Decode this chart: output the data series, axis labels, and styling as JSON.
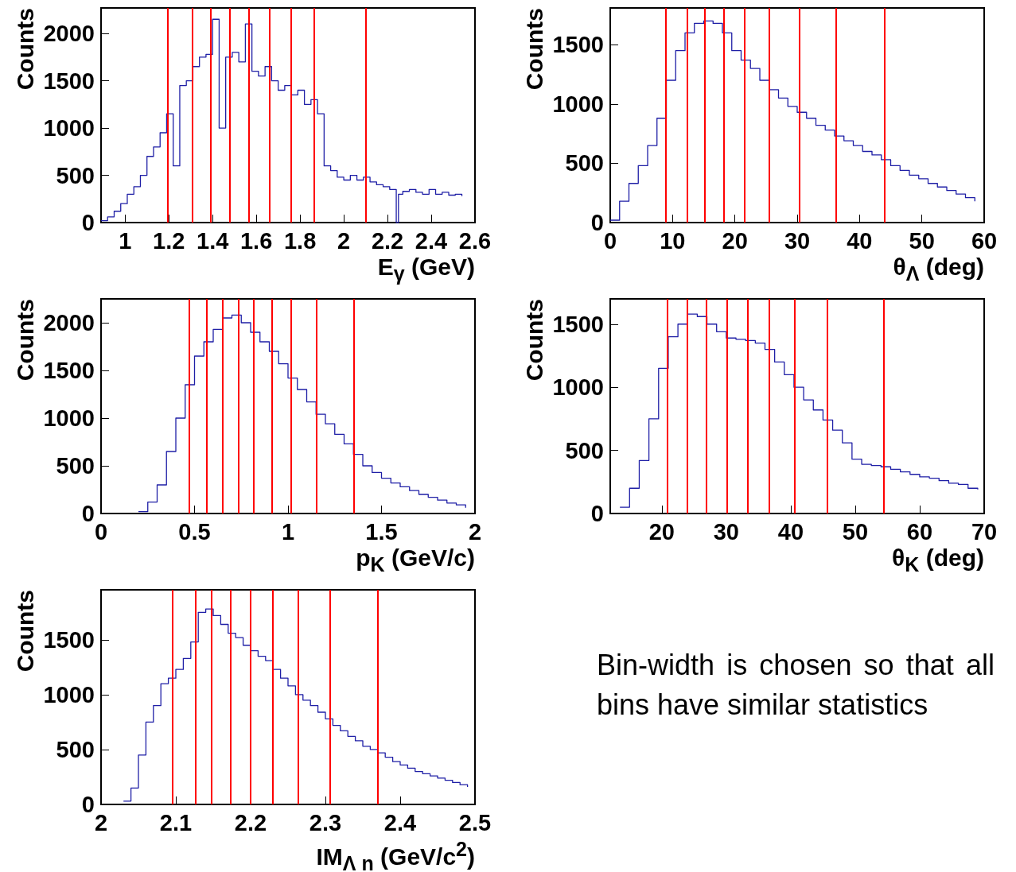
{
  "chart_data": [
    {
      "type": "step",
      "xlabel": "E$_{γ}$ (GeV)",
      "ylabel": "Counts",
      "color": "#1f1fa6",
      "marker": "none",
      "xlim": [
        0.89,
        2.6
      ],
      "ylim": [
        0,
        2270
      ],
      "xticks": [
        1,
        1.2,
        1.4,
        1.6,
        1.8,
        2,
        2.2,
        2.4,
        2.6
      ],
      "yticks": [
        0,
        500,
        1000,
        1500,
        2000
      ],
      "x": [
        0.89,
        0.92,
        0.95,
        0.98,
        1.01,
        1.04,
        1.07,
        1.1,
        1.13,
        1.16,
        1.19,
        1.22,
        1.25,
        1.28,
        1.31,
        1.34,
        1.37,
        1.4,
        1.43,
        1.46,
        1.49,
        1.52,
        1.55,
        1.58,
        1.61,
        1.64,
        1.67,
        1.7,
        1.73,
        1.76,
        1.79,
        1.82,
        1.85,
        1.88,
        1.91,
        1.94,
        1.97,
        2.0,
        2.03,
        2.06,
        2.09,
        2.12,
        2.15,
        2.18,
        2.21,
        2.24,
        2.25,
        2.27,
        2.3,
        2.33,
        2.36,
        2.39,
        2.42,
        2.45,
        2.48,
        2.51,
        2.54
      ],
      "values": [
        20,
        60,
        120,
        200,
        300,
        380,
        500,
        700,
        800,
        950,
        1150,
        600,
        1450,
        1500,
        1650,
        1750,
        1780,
        2150,
        1000,
        1750,
        1800,
        1700,
        2100,
        1600,
        1550,
        1650,
        1500,
        1400,
        1450,
        1350,
        1400,
        1250,
        1300,
        1150,
        600,
        550,
        480,
        450,
        500,
        450,
        480,
        430,
        400,
        380,
        350,
        0,
        300,
        330,
        350,
        320,
        300,
        350,
        300,
        320,
        290,
        300,
        280
      ],
      "ref_lines": [
        {
          "axis": "x",
          "value": 1.195,
          "color": "#ff0000"
        },
        {
          "axis": "x",
          "value": 1.306,
          "color": "#ff0000"
        },
        {
          "axis": "x",
          "value": 1.392,
          "color": "#ff0000"
        },
        {
          "axis": "x",
          "value": 1.479,
          "color": "#ff0000"
        },
        {
          "axis": "x",
          "value": 1.567,
          "color": "#ff0000"
        },
        {
          "axis": "x",
          "value": 1.659,
          "color": "#ff0000"
        },
        {
          "axis": "x",
          "value": 1.759,
          "color": "#ff0000"
        },
        {
          "axis": "x",
          "value": 1.865,
          "color": "#ff0000"
        },
        {
          "axis": "x",
          "value": 2.102,
          "color": "#ff0000"
        }
      ]
    },
    {
      "type": "step",
      "xlabel": "θ$_{Λ}$ (deg)",
      "ylabel": "Counts",
      "color": "#1f1fa6",
      "marker": "none",
      "xlim": [
        0,
        60
      ],
      "ylim": [
        0,
        1810
      ],
      "xticks": [
        0,
        10,
        20,
        30,
        40,
        50,
        60
      ],
      "yticks": [
        0,
        500,
        1000,
        1500
      ],
      "x": [
        0,
        1.5,
        3,
        4.5,
        6,
        7.5,
        9,
        10.5,
        12,
        13.5,
        15,
        16.5,
        18,
        19.5,
        21,
        22.5,
        24,
        25.5,
        27,
        28.5,
        30,
        31.5,
        33,
        34.5,
        36,
        37.5,
        39,
        40.5,
        42,
        43.5,
        45,
        46.5,
        48,
        49.5,
        51,
        52.5,
        54,
        55.5,
        57,
        58.5
      ],
      "values": [
        20,
        180,
        330,
        480,
        650,
        880,
        1200,
        1450,
        1600,
        1680,
        1700,
        1680,
        1600,
        1450,
        1370,
        1300,
        1200,
        1120,
        1050,
        980,
        930,
        880,
        820,
        780,
        730,
        690,
        650,
        600,
        570,
        530,
        480,
        440,
        400,
        370,
        330,
        300,
        270,
        240,
        210,
        180
      ],
      "ref_lines": [
        {
          "axis": "x",
          "value": 8.96,
          "color": "#ff0000"
        },
        {
          "axis": "x",
          "value": 12.3,
          "color": "#ff0000"
        },
        {
          "axis": "x",
          "value": 15.2,
          "color": "#ff0000"
        },
        {
          "axis": "x",
          "value": 18.2,
          "color": "#ff0000"
        },
        {
          "axis": "x",
          "value": 21.5,
          "color": "#ff0000"
        },
        {
          "axis": "x",
          "value": 25.5,
          "color": "#ff0000"
        },
        {
          "axis": "x",
          "value": 30.3,
          "color": "#ff0000"
        },
        {
          "axis": "x",
          "value": 36.2,
          "color": "#ff0000"
        },
        {
          "axis": "x",
          "value": 44.0,
          "color": "#ff0000"
        }
      ]
    },
    {
      "type": "step",
      "xlabel": "p$_{K}$ (GeV/c)",
      "ylabel": "Counts",
      "color": "#1f1fa6",
      "marker": "none",
      "xlim": [
        0,
        2
      ],
      "ylim": [
        0,
        2250
      ],
      "xticks": [
        0,
        0.5,
        1,
        1.5,
        2
      ],
      "yticks": [
        0,
        500,
        1000,
        1500,
        2000
      ],
      "x": [
        0.2,
        0.25,
        0.3,
        0.35,
        0.4,
        0.45,
        0.5,
        0.55,
        0.6,
        0.65,
        0.7,
        0.75,
        0.8,
        0.85,
        0.9,
        0.95,
        1.0,
        1.05,
        1.1,
        1.15,
        1.2,
        1.25,
        1.3,
        1.35,
        1.4,
        1.45,
        1.5,
        1.55,
        1.6,
        1.65,
        1.7,
        1.75,
        1.8,
        1.85,
        1.9,
        1.95
      ],
      "values": [
        20,
        120,
        300,
        650,
        1000,
        1350,
        1650,
        1800,
        1930,
        2050,
        2080,
        2000,
        1900,
        1800,
        1700,
        1570,
        1420,
        1300,
        1170,
        1040,
        940,
        830,
        730,
        620,
        500,
        430,
        370,
        320,
        280,
        240,
        200,
        170,
        140,
        110,
        90,
        60
      ],
      "ref_lines": [
        {
          "axis": "x",
          "value": 0.472,
          "color": "#ff0000"
        },
        {
          "axis": "x",
          "value": 0.567,
          "color": "#ff0000"
        },
        {
          "axis": "x",
          "value": 0.65,
          "color": "#ff0000"
        },
        {
          "axis": "x",
          "value": 0.735,
          "color": "#ff0000"
        },
        {
          "axis": "x",
          "value": 0.817,
          "color": "#ff0000"
        },
        {
          "axis": "x",
          "value": 0.912,
          "color": "#ff0000"
        },
        {
          "axis": "x",
          "value": 1.017,
          "color": "#ff0000"
        },
        {
          "axis": "x",
          "value": 1.151,
          "color": "#ff0000"
        },
        {
          "axis": "x",
          "value": 1.351,
          "color": "#ff0000"
        }
      ]
    },
    {
      "type": "step",
      "xlabel": "θ$_{K}$ (deg)",
      "ylabel": "Counts",
      "color": "#1f1fa6",
      "marker": "none",
      "xlim": [
        12,
        70
      ],
      "ylim": [
        0,
        1700
      ],
      "xticks": [
        20,
        30,
        40,
        50,
        60,
        70
      ],
      "yticks": [
        0,
        500,
        1000,
        1500
      ],
      "x": [
        13.5,
        15,
        16.5,
        18,
        19.5,
        21,
        22.5,
        24,
        25.5,
        27,
        28.5,
        30,
        31.5,
        33,
        34.5,
        36,
        37.5,
        39,
        40.5,
        42,
        43.5,
        45,
        46.5,
        48,
        49.5,
        51,
        52.5,
        54,
        55.5,
        57,
        58.5,
        60,
        61.5,
        63,
        64.5,
        66,
        67.5,
        69
      ],
      "values": [
        50,
        200,
        420,
        750,
        1150,
        1400,
        1500,
        1580,
        1560,
        1500,
        1440,
        1390,
        1380,
        1370,
        1350,
        1300,
        1200,
        1100,
        1000,
        900,
        820,
        740,
        660,
        560,
        430,
        390,
        380,
        370,
        350,
        330,
        310,
        290,
        280,
        260,
        240,
        230,
        200,
        190
      ],
      "ref_lines": [
        {
          "axis": "x",
          "value": 20.9,
          "color": "#ff0000"
        },
        {
          "axis": "x",
          "value": 24.0,
          "color": "#ff0000"
        },
        {
          "axis": "x",
          "value": 26.9,
          "color": "#ff0000"
        },
        {
          "axis": "x",
          "value": 30.1,
          "color": "#ff0000"
        },
        {
          "axis": "x",
          "value": 33.3,
          "color": "#ff0000"
        },
        {
          "axis": "x",
          "value": 36.7,
          "color": "#ff0000"
        },
        {
          "axis": "x",
          "value": 40.6,
          "color": "#ff0000"
        },
        {
          "axis": "x",
          "value": 45.6,
          "color": "#ff0000"
        },
        {
          "axis": "x",
          "value": 54.4,
          "color": "#ff0000"
        }
      ]
    },
    {
      "type": "step",
      "xlabel": "IM$_{Λ n}$ (GeV/c$^{2}$)",
      "ylabel": "Counts",
      "color": "#1f1fa6",
      "marker": "none",
      "xlim": [
        2,
        2.5
      ],
      "ylim": [
        0,
        1955
      ],
      "xticks": [
        2,
        2.1,
        2.2,
        2.3,
        2.4,
        2.5
      ],
      "yticks": [
        0,
        500,
        1000,
        1500
      ],
      "x": [
        2.03,
        2.04,
        2.05,
        2.06,
        2.07,
        2.08,
        2.09,
        2.1,
        2.11,
        2.12,
        2.13,
        2.14,
        2.15,
        2.16,
        2.17,
        2.18,
        2.19,
        2.2,
        2.21,
        2.22,
        2.23,
        2.24,
        2.25,
        2.26,
        2.27,
        2.28,
        2.29,
        2.3,
        2.31,
        2.32,
        2.33,
        2.34,
        2.35,
        2.36,
        2.37,
        2.38,
        2.39,
        2.4,
        2.41,
        2.42,
        2.43,
        2.44,
        2.45,
        2.46,
        2.47,
        2.48,
        2.49
      ],
      "values": [
        30,
        150,
        450,
        750,
        900,
        1100,
        1150,
        1230,
        1330,
        1480,
        1750,
        1780,
        1720,
        1640,
        1560,
        1520,
        1450,
        1400,
        1350,
        1310,
        1230,
        1150,
        1080,
        1000,
        950,
        900,
        840,
        780,
        720,
        670,
        620,
        580,
        530,
        500,
        470,
        430,
        390,
        360,
        330,
        300,
        280,
        260,
        240,
        220,
        200,
        180,
        160
      ],
      "ref_lines": [
        {
          "axis": "x",
          "value": 2.0955,
          "color": "#ff0000"
        },
        {
          "axis": "x",
          "value": 2.1265,
          "color": "#ff0000"
        },
        {
          "axis": "x",
          "value": 2.148,
          "color": "#ff0000"
        },
        {
          "axis": "x",
          "value": 2.173,
          "color": "#ff0000"
        },
        {
          "axis": "x",
          "value": 2.1995,
          "color": "#ff0000"
        },
        {
          "axis": "x",
          "value": 2.229,
          "color": "#ff0000"
        },
        {
          "axis": "x",
          "value": 2.2636,
          "color": "#ff0000"
        },
        {
          "axis": "x",
          "value": 2.3065,
          "color": "#ff0000"
        },
        {
          "axis": "x",
          "value": 2.3697,
          "color": "#ff0000"
        }
      ]
    },
    {
      "type": "other",
      "annotations": [
        "Bin-width is chosen so that all bins have similar statistics"
      ]
    }
  ]
}
